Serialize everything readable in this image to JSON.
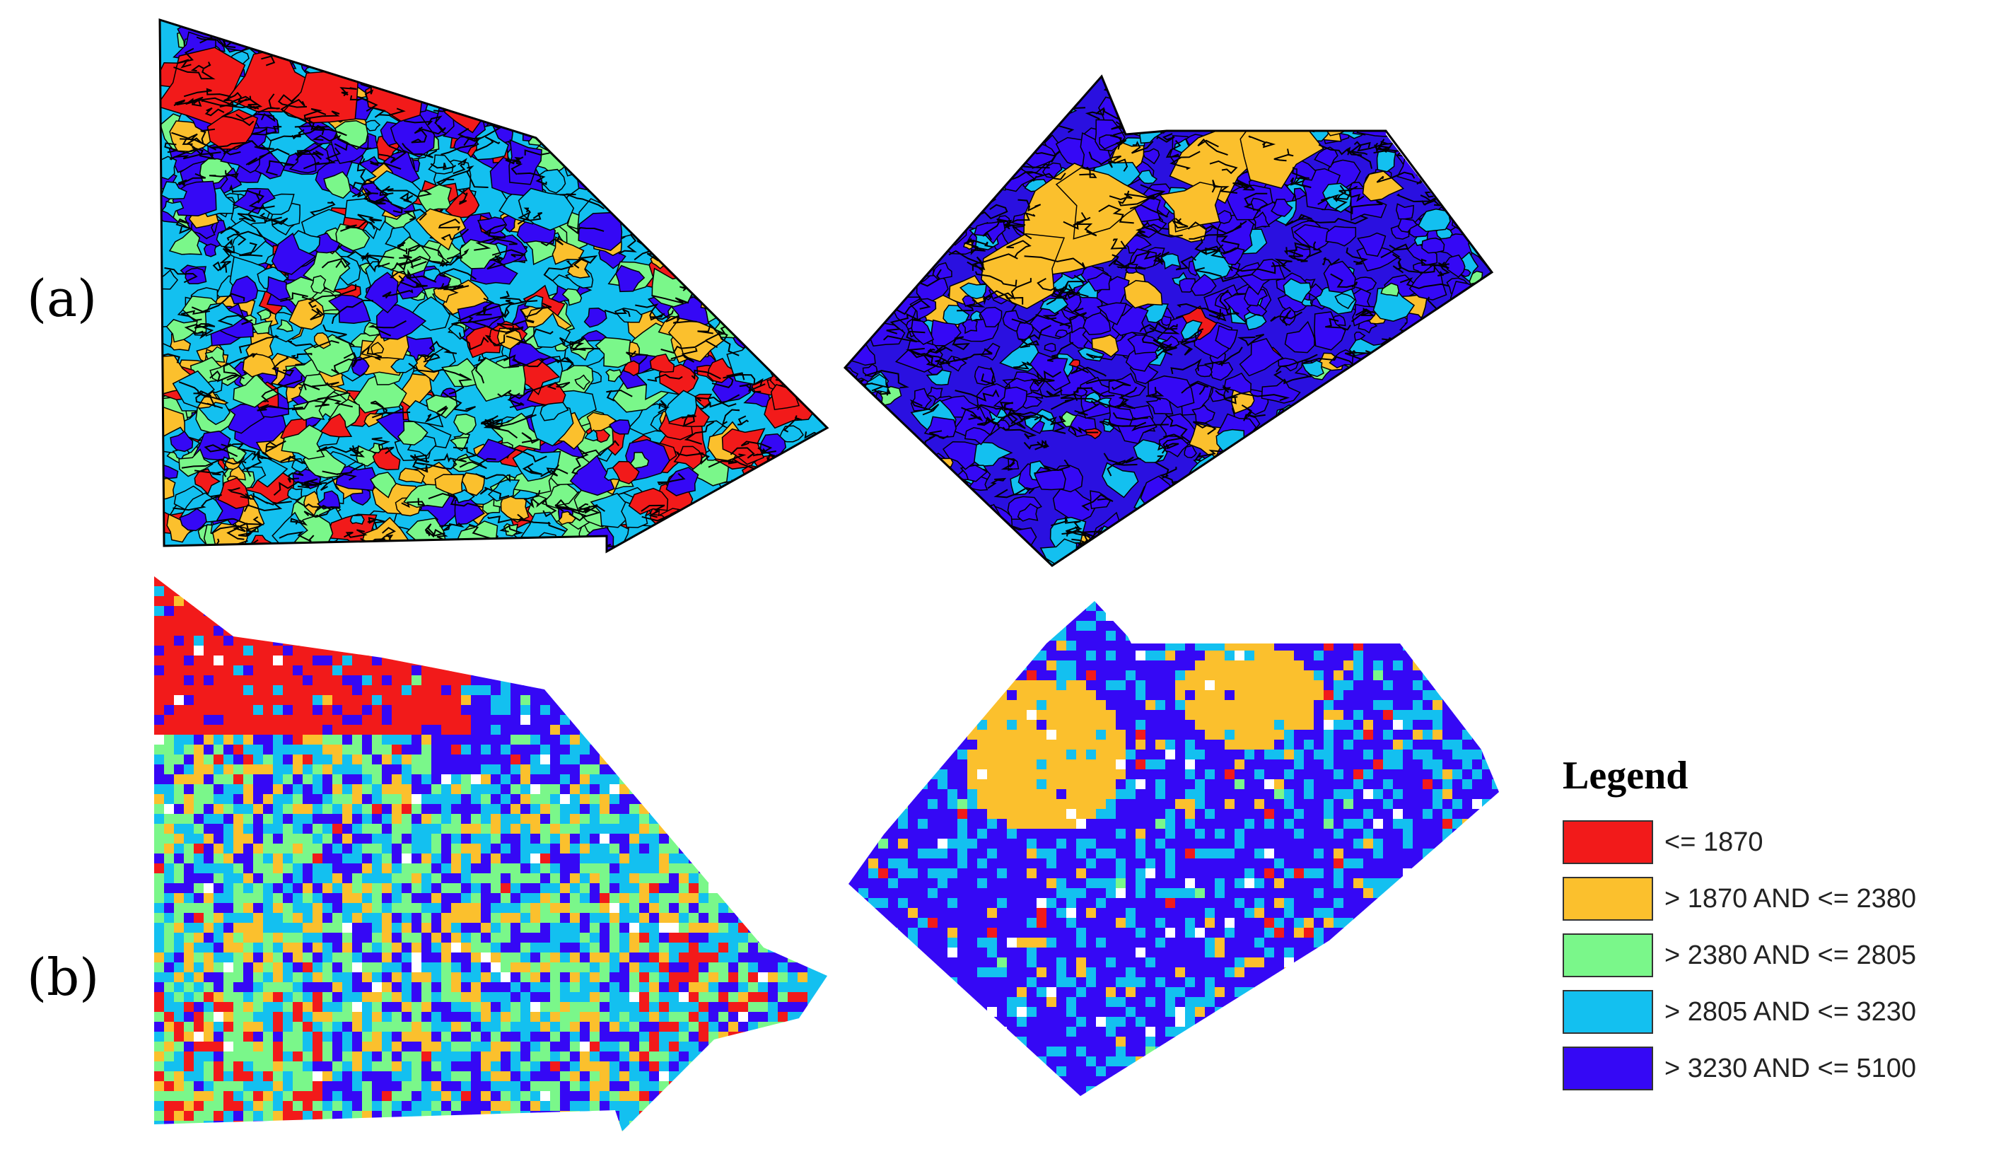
{
  "panels": {
    "a": "(a)",
    "b": "(b)"
  },
  "legend": {
    "title": "Legend",
    "items": [
      {
        "label": "<= 1870",
        "color": "#f21a1a"
      },
      {
        "label": "> 1870 AND <= 2380",
        "color": "#fbc02d"
      },
      {
        "label": "> 2380 AND <= 2805",
        "color": "#7af78a"
      },
      {
        "label": "> 2805 AND <= 3230",
        "color": "#13c0f0"
      },
      {
        "label": "> 3230 AND <= 5100",
        "color": "#3508f5"
      }
    ]
  }
}
